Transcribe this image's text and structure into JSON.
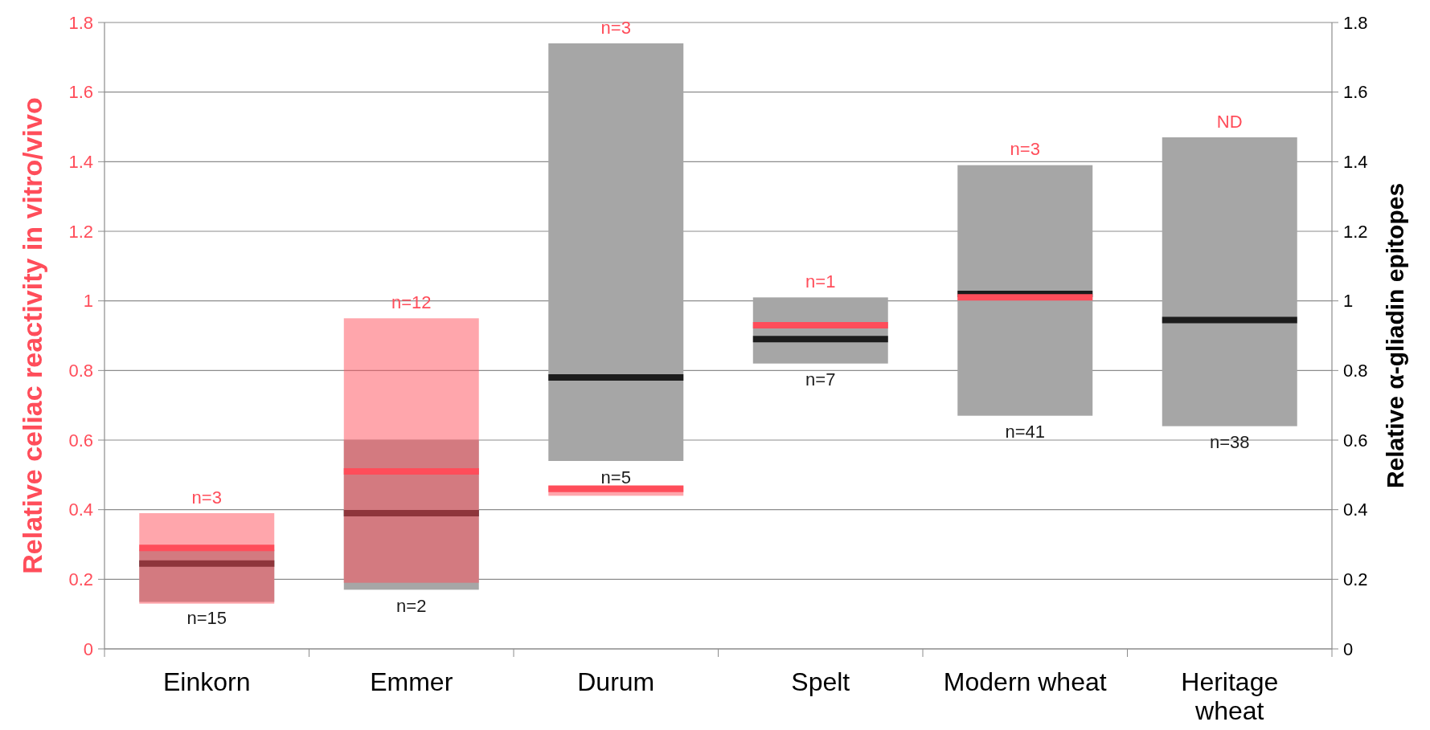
{
  "chart_data": {
    "type": "box",
    "ylabel": "Relative celiac reactivity in vitro/vivo",
    "y2label": "Relative α-gliadin epitopes",
    "categories": [
      "Einkorn",
      "Emmer",
      "Durum",
      "Spelt",
      "Modern wheat",
      "Heritage wheat"
    ],
    "ylim": [
      0,
      1.8
    ],
    "yticks": [
      0,
      0.2,
      0.4,
      0.6,
      0.8,
      1,
      1.2,
      1.4,
      1.6,
      1.8
    ],
    "y2lim": [
      0,
      1.8
    ],
    "y2ticks": [
      0,
      0.2,
      0.4,
      0.6,
      0.8,
      1,
      1.2,
      1.4,
      1.6,
      1.8
    ],
    "grid": "y",
    "series": [
      {
        "color": "#a6a6a6",
        "axis": "y2",
        "value_labels": [
          "n=15",
          "n=2",
          "n=5",
          "n=7",
          "n=41",
          "n=38"
        ],
        "boxes": [
          {
            "low": 0.135,
            "q1": 0.135,
            "median": 0.245,
            "q3": 0.285,
            "high": 0.285
          },
          {
            "low": 0.17,
            "q1": 0.17,
            "median": 0.39,
            "q3": 0.6,
            "high": 0.6
          },
          {
            "low": 0.54,
            "q1": 0.54,
            "median": 0.78,
            "q3": 1.74,
            "high": 1.74
          },
          {
            "low": 0.82,
            "q1": 0.82,
            "median": 0.89,
            "q3": 1.01,
            "high": 1.01
          },
          {
            "low": 0.67,
            "q1": 0.67,
            "median": 1.02,
            "q3": 1.39,
            "high": 1.39
          },
          {
            "low": 0.64,
            "q1": 0.64,
            "median": 0.945,
            "q3": 1.47,
            "high": 1.47
          }
        ]
      },
      {
        "color": "#ff4d5a",
        "axis": "y",
        "value_labels": [
          "n=3",
          "n=12",
          "n=3",
          "n=1",
          "n=3",
          "ND"
        ],
        "boxes": [
          {
            "low": 0.13,
            "q1": 0.13,
            "median": 0.29,
            "q3": 0.39,
            "high": 0.39
          },
          {
            "low": 0.19,
            "q1": 0.19,
            "median": 0.51,
            "q3": 0.95,
            "high": 0.95
          },
          {
            "low": 0.44,
            "q1": 0.44,
            "median": 0.46,
            "q3": 0.47,
            "high": 0.47
          },
          {
            "low": 0.93,
            "q1": 0.93,
            "median": 0.93,
            "q3": 0.93,
            "high": 0.93
          },
          {
            "low": 1.01,
            "q1": 1.01,
            "median": 1.01,
            "q3": 1.01,
            "high": 1.01
          },
          null
        ]
      }
    ]
  }
}
